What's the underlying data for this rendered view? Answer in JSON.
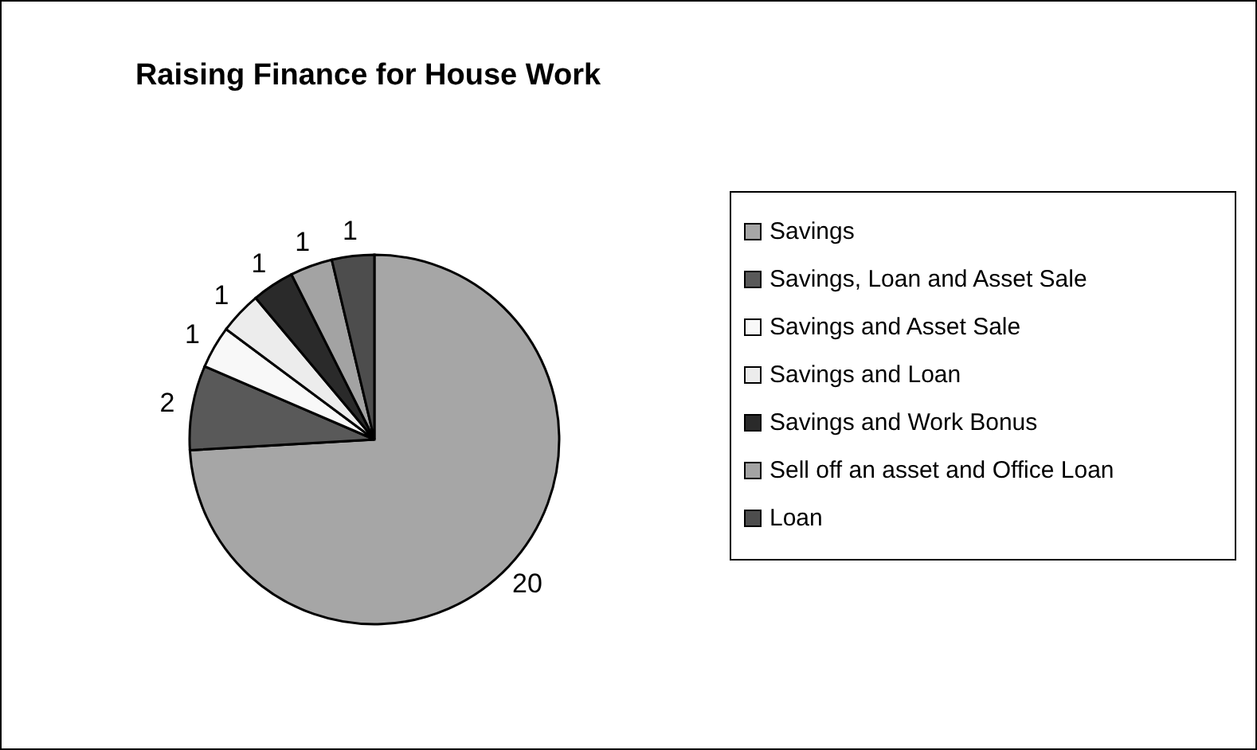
{
  "chart_data": {
    "type": "pie",
    "title": "Raising Finance for House Work",
    "categories": [
      "Savings",
      "Savings, Loan and Asset Sale",
      "Savings and Asset Sale",
      "Savings and Loan",
      "Savings and Work Bonus",
      "Sell off an asset and Office Loan",
      "Loan"
    ],
    "values": [
      20,
      2,
      1,
      1,
      1,
      1,
      1
    ],
    "colors": [
      "#a6a6a6",
      "#595959",
      "#f8f8f8",
      "#ececec",
      "#2a2a2a",
      "#a3a3a3",
      "#4d4d4d"
    ],
    "data_labels": true,
    "legend": "right"
  }
}
